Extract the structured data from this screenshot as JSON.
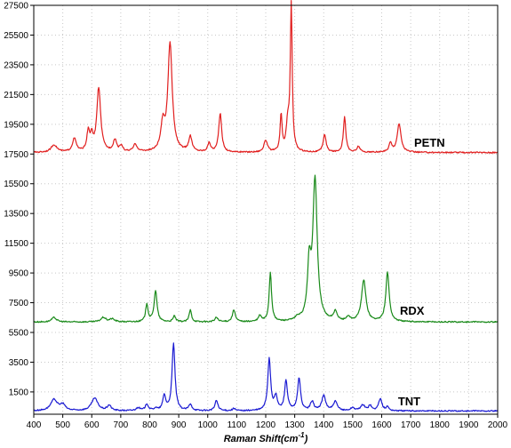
{
  "chart_data": {
    "type": "line",
    "xlabel": "Raman Shift(cm",
    "xlabel_sup": "-1",
    "xlabel_close": ")",
    "ylabel": "",
    "xlim": [
      400,
      2000
    ],
    "ylim": [
      0,
      27500
    ],
    "x_ticks": [
      400,
      500,
      600,
      700,
      800,
      900,
      1000,
      1100,
      1200,
      1300,
      1400,
      1500,
      1600,
      1700,
      1800,
      1900,
      2000
    ],
    "y_ticks": [
      1500,
      3500,
      5500,
      7500,
      9500,
      11500,
      13500,
      15500,
      17500,
      19500,
      21500,
      23500,
      25500,
      27500
    ],
    "grid": true,
    "series": [
      {
        "name": "PETN",
        "color": "#e11f1f",
        "baseline": 17600,
        "peaks": [
          [
            470,
            500,
            12
          ],
          [
            540,
            900,
            8
          ],
          [
            588,
            1300,
            6
          ],
          [
            600,
            900,
            5
          ],
          [
            624,
            4300,
            8
          ],
          [
            680,
            800,
            7
          ],
          [
            702,
            400,
            6
          ],
          [
            750,
            500,
            8
          ],
          [
            845,
            1700,
            8
          ],
          [
            870,
            7300,
            9
          ],
          [
            940,
            1000,
            7
          ],
          [
            1005,
            600,
            6
          ],
          [
            1043,
            2600,
            6
          ],
          [
            1200,
            800,
            7
          ],
          [
            1253,
            2500,
            4
          ],
          [
            1276,
            1800,
            6
          ],
          [
            1288,
            9800,
            4
          ],
          [
            1403,
            1200,
            6
          ],
          [
            1472,
            2400,
            5
          ],
          [
            1520,
            400,
            6
          ],
          [
            1630,
            600,
            6
          ],
          [
            1660,
            1900,
            8
          ]
        ]
      },
      {
        "name": "RDX",
        "color": "#1a8a1a",
        "baseline": 6200,
        "peaks": [
          [
            470,
            300,
            10
          ],
          [
            640,
            300,
            10
          ],
          [
            670,
            200,
            10
          ],
          [
            790,
            1200,
            5
          ],
          [
            820,
            2100,
            6
          ],
          [
            885,
            400,
            5
          ],
          [
            940,
            800,
            5
          ],
          [
            1030,
            300,
            6
          ],
          [
            1090,
            800,
            6
          ],
          [
            1180,
            400,
            6
          ],
          [
            1216,
            3300,
            5
          ],
          [
            1310,
            200,
            8
          ],
          [
            1350,
            3500,
            7
          ],
          [
            1370,
            9500,
            9
          ],
          [
            1440,
            600,
            7
          ],
          [
            1485,
            300,
            7
          ],
          [
            1538,
            2800,
            9
          ],
          [
            1620,
            3300,
            7
          ]
        ]
      },
      {
        "name": "TNT",
        "color": "#1a1ad2",
        "baseline": 220,
        "peaks": [
          [
            470,
            750,
            14
          ],
          [
            500,
            400,
            10
          ],
          [
            610,
            850,
            13
          ],
          [
            660,
            350,
            8
          ],
          [
            760,
            200,
            8
          ],
          [
            790,
            450,
            6
          ],
          [
            820,
            150,
            6
          ],
          [
            850,
            1000,
            6
          ],
          [
            882,
            4500,
            6
          ],
          [
            940,
            400,
            7
          ],
          [
            1030,
            700,
            6
          ],
          [
            1090,
            150,
            6
          ],
          [
            1212,
            3500,
            6
          ],
          [
            1235,
            900,
            6
          ],
          [
            1270,
            2000,
            6
          ],
          [
            1315,
            2200,
            6
          ],
          [
            1360,
            600,
            7
          ],
          [
            1400,
            1000,
            8
          ],
          [
            1440,
            600,
            8
          ],
          [
            1500,
            200,
            8
          ],
          [
            1535,
            400,
            8
          ],
          [
            1560,
            350,
            6
          ],
          [
            1595,
            800,
            7
          ],
          [
            1620,
            250,
            6
          ]
        ]
      }
    ]
  }
}
